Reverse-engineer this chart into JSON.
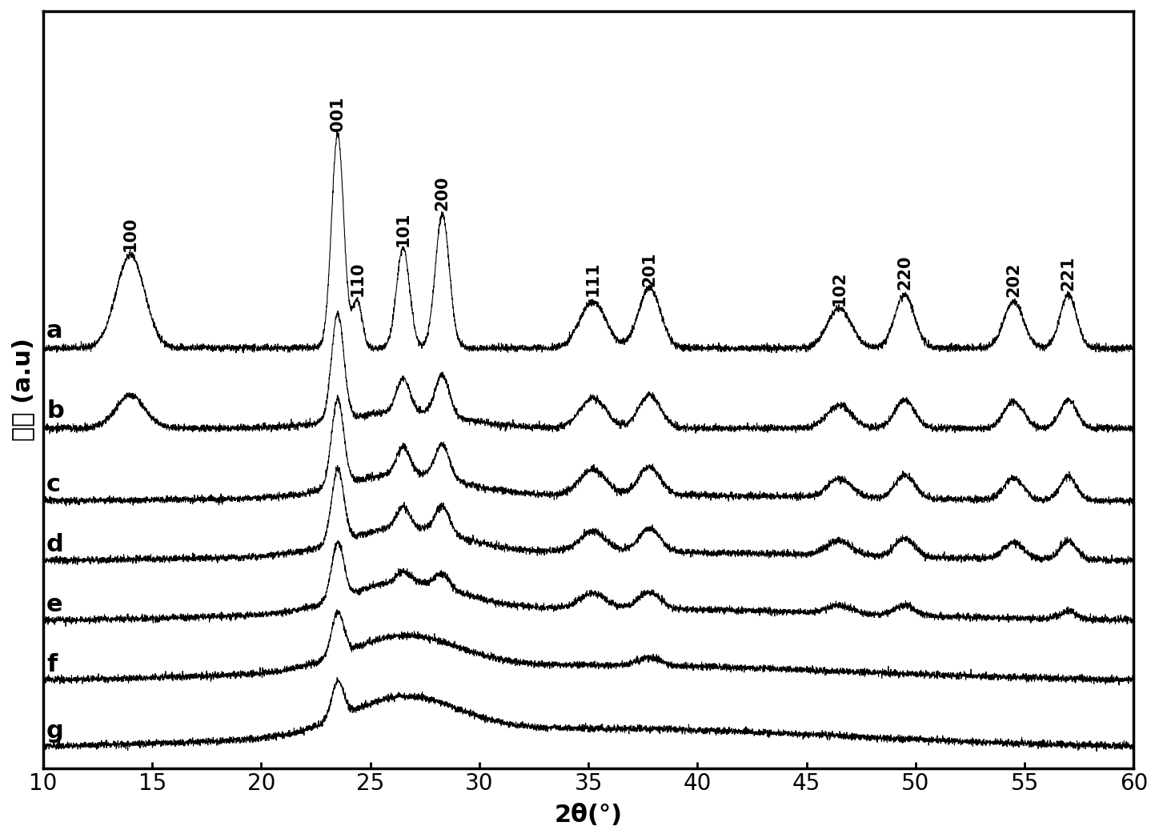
{
  "xlabel": "2θ(°)",
  "ylabel": "强度 (a.u)",
  "xlim": [
    10,
    60
  ],
  "series_labels": [
    "a",
    "b",
    "c",
    "d",
    "e",
    "f",
    "g"
  ],
  "series_offsets": [
    6.0,
    4.8,
    3.7,
    2.8,
    1.9,
    1.0,
    0.0
  ],
  "peak_labels": [
    {
      "label": "100",
      "x": 14.0
    },
    {
      "label": "001",
      "x": 23.5
    },
    {
      "label": "110",
      "x": 24.4
    },
    {
      "label": "101",
      "x": 26.5
    },
    {
      "label": "200",
      "x": 28.3
    },
    {
      "label": "111",
      "x": 35.2
    },
    {
      "label": "201",
      "x": 37.8
    },
    {
      "label": "102",
      "x": 46.5
    },
    {
      "label": "220",
      "x": 49.5
    },
    {
      "label": "202",
      "x": 54.5
    },
    {
      "label": "221",
      "x": 57.0
    }
  ],
  "line_color": "#000000",
  "background_color": "#ffffff",
  "tick_fontsize": 20,
  "label_fontsize": 22,
  "peak_label_fontsize": 15,
  "series_label_fontsize": 22,
  "noise_amplitude": 0.025,
  "seed": 42
}
